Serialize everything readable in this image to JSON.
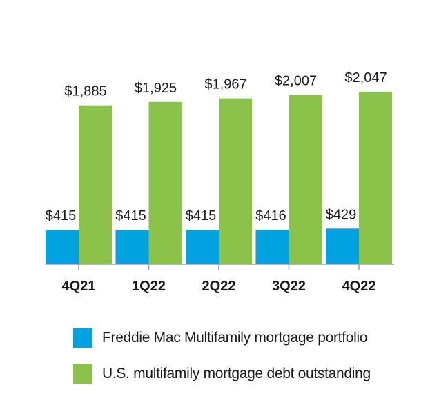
{
  "chart_data": {
    "type": "bar",
    "categories": [
      "4Q21",
      "1Q22",
      "2Q22",
      "3Q22",
      "4Q22"
    ],
    "series": [
      {
        "name": "Freddie Mac Multifamily mortgage portfolio",
        "values": [
          415,
          415,
          415,
          416,
          429
        ],
        "labels": [
          "$415",
          "$415",
          "$415",
          "$416",
          "$429"
        ],
        "color": "#00a3e0"
      },
      {
        "name": "U.S. multifamily mortgage debt outstanding",
        "values": [
          1885,
          1925,
          1967,
          2007,
          2047
        ],
        "labels": [
          "$1,885",
          "$1,925",
          "$1,967",
          "$2,007",
          "$2,047"
        ],
        "color": "#8bc34a"
      }
    ],
    "title": "",
    "xlabel": "",
    "ylabel": "",
    "grid": false,
    "legend_position": "bottom",
    "axis_color": "#9e9e9e"
  }
}
